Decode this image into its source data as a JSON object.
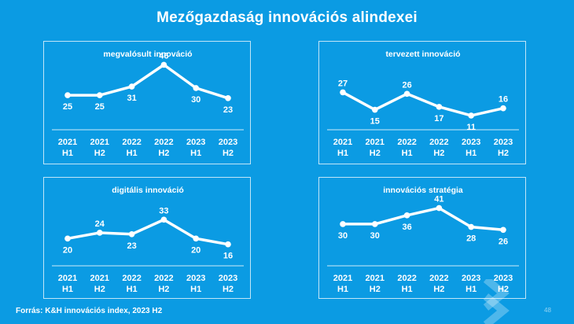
{
  "page": {
    "title": "Mezőgazdaság innovációs  alindexei",
    "source": "Forrás: K&H innovációs index, 2023 H2",
    "page_number": "48"
  },
  "colors": {
    "background": "#0b9be3",
    "line": "#ffffff"
  },
  "chart_data": [
    {
      "type": "line",
      "title": "megvalósult innováció",
      "categories": [
        [
          "2021",
          "H1"
        ],
        [
          "2021",
          "H2"
        ],
        [
          "2022",
          "H1"
        ],
        [
          "2022",
          "H2"
        ],
        [
          "2023",
          "H1"
        ],
        [
          "2023",
          "H2"
        ]
      ],
      "series": [
        {
          "values": [
            25,
            25,
            31,
            46,
            30,
            23
          ]
        }
      ],
      "ylim": [
        0,
        60
      ]
    },
    {
      "type": "line",
      "title": "tervezett innováció",
      "categories": [
        [
          "2021",
          "H1"
        ],
        [
          "2021",
          "H2"
        ],
        [
          "2022",
          "H1"
        ],
        [
          "2022",
          "H2"
        ],
        [
          "2023",
          "H1"
        ],
        [
          "2023",
          "H2"
        ]
      ],
      "series": [
        {
          "values": [
            27,
            15,
            26,
            17,
            11,
            16
          ]
        }
      ],
      "ylim": [
        0,
        60
      ]
    },
    {
      "type": "line",
      "title": "digitális innováció",
      "categories": [
        [
          "2021",
          "H1"
        ],
        [
          "2021",
          "H2"
        ],
        [
          "2022",
          "H1"
        ],
        [
          "2022",
          "H2"
        ],
        [
          "2023",
          "H1"
        ],
        [
          "2023",
          "H2"
        ]
      ],
      "series": [
        {
          "values": [
            20,
            24,
            23,
            33,
            20,
            16
          ]
        }
      ],
      "ylim": [
        0,
        60
      ]
    },
    {
      "type": "line",
      "title": "innovációs stratégia",
      "categories": [
        [
          "2021",
          "H1"
        ],
        [
          "2021",
          "H2"
        ],
        [
          "2022",
          "H1"
        ],
        [
          "2022",
          "H2"
        ],
        [
          "2023",
          "H1"
        ],
        [
          "2023",
          "H2"
        ]
      ],
      "series": [
        {
          "values": [
            30,
            30,
            36,
            41,
            28,
            26
          ]
        }
      ],
      "ylim": [
        0,
        60
      ]
    }
  ]
}
